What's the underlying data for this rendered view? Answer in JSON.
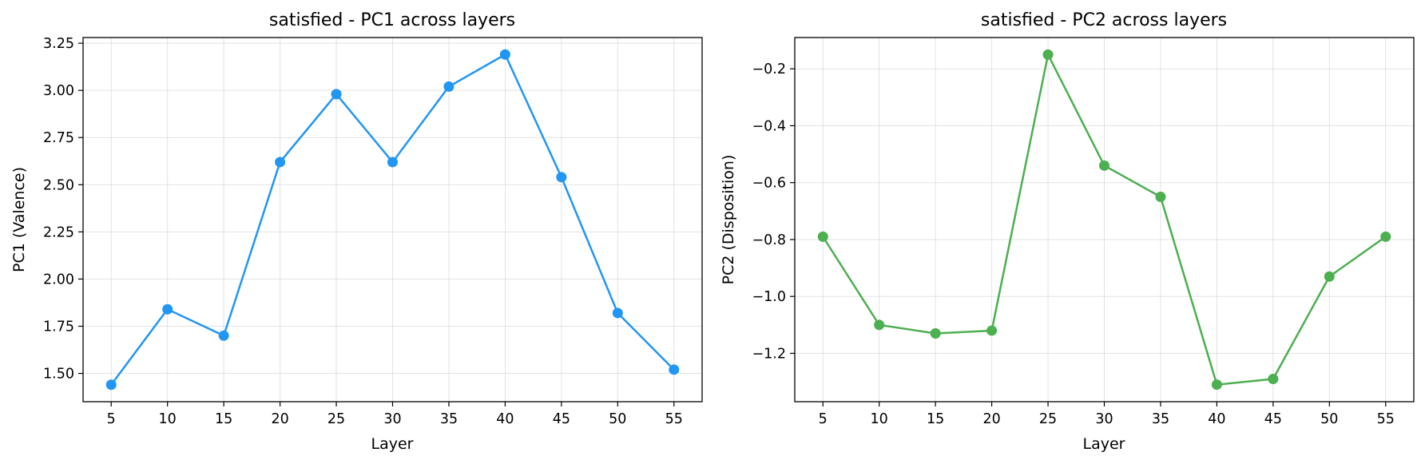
{
  "chart_data": [
    {
      "type": "line",
      "title": "satisfied - PC1 across layers",
      "xlabel": "Layer",
      "ylabel": "PC1 (Valence)",
      "x": [
        5,
        10,
        15,
        20,
        25,
        30,
        35,
        40,
        45,
        50,
        55
      ],
      "xticks": [
        "5",
        "10",
        "15",
        "20",
        "25",
        "30",
        "35",
        "40",
        "45",
        "50",
        "55"
      ],
      "yticks": [
        "1.50",
        "1.75",
        "2.00",
        "2.25",
        "2.50",
        "2.75",
        "3.00",
        "3.25"
      ],
      "ytick_values": [
        1.5,
        1.75,
        2.0,
        2.25,
        2.5,
        2.75,
        3.0,
        3.25
      ],
      "xlim": [
        2.5,
        57.5
      ],
      "ylim": [
        1.35,
        3.28
      ],
      "grid": true,
      "series": [
        {
          "values": [
            1.44,
            1.84,
            1.7,
            2.62,
            2.98,
            2.62,
            3.02,
            3.19,
            2.54,
            1.82,
            1.52
          ],
          "color": "#2196F3",
          "marker": "circle"
        }
      ]
    },
    {
      "type": "line",
      "title": "satisfied - PC2 across layers",
      "xlabel": "Layer",
      "ylabel": "PC2 (Disposition)",
      "x": [
        5,
        10,
        15,
        20,
        25,
        30,
        35,
        40,
        45,
        50,
        55
      ],
      "xticks": [
        "5",
        "10",
        "15",
        "20",
        "25",
        "30",
        "35",
        "40",
        "45",
        "50",
        "55"
      ],
      "yticks": [
        "−1.2",
        "−1.0",
        "−0.8",
        "−0.6",
        "−0.4",
        "−0.2"
      ],
      "ytick_values": [
        -1.2,
        -1.0,
        -0.8,
        -0.6,
        -0.4,
        -0.2
      ],
      "xlim": [
        2.5,
        57.5
      ],
      "ylim": [
        -1.37,
        -0.09
      ],
      "grid": true,
      "series": [
        {
          "values": [
            -0.79,
            -1.1,
            -1.13,
            -1.12,
            -0.15,
            -0.54,
            -0.65,
            -1.31,
            -1.29,
            -0.93,
            -0.79
          ],
          "color": "#4CAF50",
          "marker": "circle"
        }
      ]
    }
  ]
}
